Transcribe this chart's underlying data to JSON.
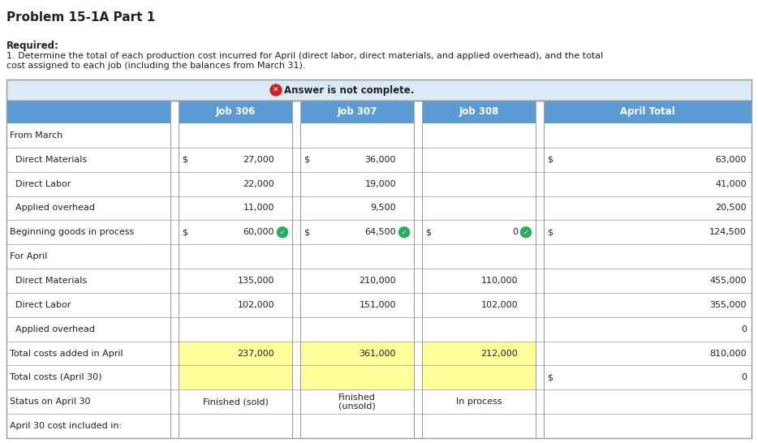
{
  "title": "Problem 15-1A Part 1",
  "required_label": "Required:",
  "description": "1. Determine the total of each production cost incurred for April (direct labor, direct materials, and applied overhead), and the total\ncost assigned to each job (including the balances from March 31).",
  "answer_banner_text": "Answer is not complete.",
  "col_headers": [
    "Job 306",
    "Job 307",
    "Job 308",
    "April Total"
  ],
  "header_bg": "#5b9bd5",
  "answer_banner_bg": "#daeaf7",
  "yellow_bg": "#ffff99",
  "rows": [
    {
      "label": "From March",
      "j306_sym": "",
      "j306_val": "",
      "j307_sym": "",
      "j307_val": "",
      "j308_sym": "",
      "j308_val": "",
      "at_sym": "",
      "at_val": "",
      "highlight": false,
      "section_header": true
    },
    {
      "label": "  Direct Materials",
      "j306_sym": "$",
      "j306_val": "27,000",
      "j307_sym": "$",
      "j307_val": "36,000",
      "j308_sym": "",
      "j308_val": "",
      "at_sym": "$",
      "at_val": "63,000",
      "highlight": false
    },
    {
      "label": "  Direct Labor",
      "j306_sym": "",
      "j306_val": "22,000",
      "j307_sym": "",
      "j307_val": "19,000",
      "j308_sym": "",
      "j308_val": "",
      "at_sym": "",
      "at_val": "41,000",
      "highlight": false
    },
    {
      "label": "  Applied overhead",
      "j306_sym": "",
      "j306_val": "11,000",
      "j307_sym": "",
      "j307_val": "9,500",
      "j308_sym": "",
      "j308_val": "",
      "at_sym": "",
      "at_val": "20,500",
      "highlight": false
    },
    {
      "label": "Beginning goods in process",
      "j306_sym": "$",
      "j306_val": "60,000",
      "j307_sym": "$",
      "j307_val": "64,500",
      "j308_sym": "$",
      "j308_val": "0",
      "at_sym": "$",
      "at_val": "124,500",
      "highlight": false,
      "checkmarks": [
        1,
        1,
        1
      ]
    },
    {
      "label": "For April",
      "j306_sym": "",
      "j306_val": "",
      "j307_sym": "",
      "j307_val": "",
      "j308_sym": "",
      "j308_val": "",
      "at_sym": "",
      "at_val": "",
      "highlight": false,
      "section_header": true
    },
    {
      "label": "  Direct Materials",
      "j306_sym": "",
      "j306_val": "135,000",
      "j307_sym": "",
      "j307_val": "210,000",
      "j308_sym": "",
      "j308_val": "110,000",
      "at_sym": "",
      "at_val": "455,000",
      "highlight": false
    },
    {
      "label": "  Direct Labor",
      "j306_sym": "",
      "j306_val": "102,000",
      "j307_sym": "",
      "j307_val": "151,000",
      "j308_sym": "",
      "j308_val": "102,000",
      "at_sym": "",
      "at_val": "355,000",
      "highlight": false
    },
    {
      "label": "  Applied overhead",
      "j306_sym": "",
      "j306_val": "",
      "j307_sym": "",
      "j307_val": "",
      "j308_sym": "",
      "j308_val": "",
      "at_sym": "",
      "at_val": "0",
      "highlight": false
    },
    {
      "label": "Total costs added in April",
      "j306_sym": "",
      "j306_val": "237,000",
      "j307_sym": "",
      "j307_val": "361,000",
      "j308_sym": "",
      "j308_val": "212,000",
      "at_sym": "",
      "at_val": "810,000",
      "highlight": true
    },
    {
      "label": "Total costs (April 30)",
      "j306_sym": "",
      "j306_val": "",
      "j307_sym": "",
      "j307_val": "",
      "j308_sym": "",
      "j308_val": "",
      "at_sym": "$",
      "at_val": "0",
      "highlight": true
    },
    {
      "label": "Status on April 30",
      "j306_sym": "",
      "j306_val": "Finished (sold)",
      "j307_sym": "",
      "j307_val": "Finished\n(unsold)",
      "j308_sym": "",
      "j308_val": "In process",
      "at_sym": "",
      "at_val": "",
      "highlight": false
    },
    {
      "label": "April 30 cost included in:",
      "j306_sym": "",
      "j306_val": "",
      "j307_sym": "",
      "j307_val": "",
      "j308_sym": "",
      "j308_val": "",
      "at_sym": "",
      "at_val": "",
      "highlight": false
    }
  ],
  "bg_color": "#ffffff",
  "border_color": "#999999",
  "text_color": "#222222",
  "gap_col_color": "#e8e8e8"
}
